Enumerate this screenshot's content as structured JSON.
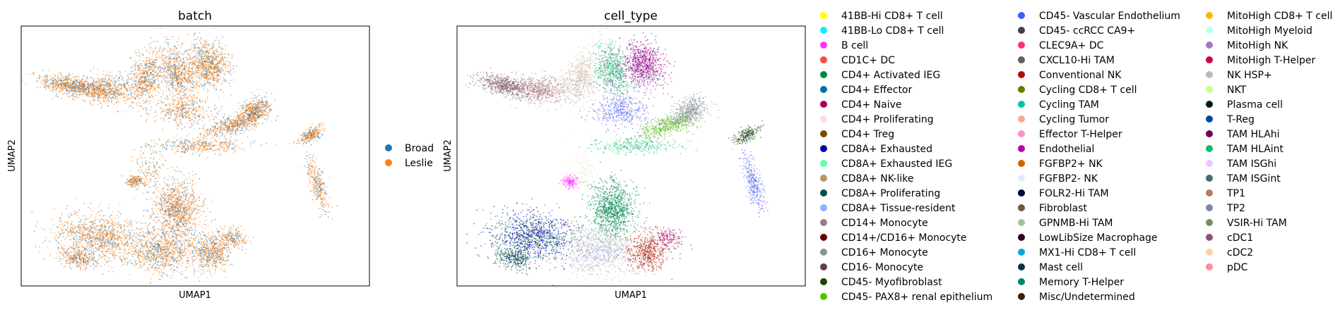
{
  "chart_data": [
    {
      "type": "scatter",
      "title": "batch",
      "xlabel": "UMAP1",
      "ylabel": "UMAP2",
      "grid": false,
      "legend_position": "right",
      "series": [
        {
          "name": "Broad",
          "color": "#1f77b4"
        },
        {
          "name": "Leslie",
          "color": "#ff7f0e"
        }
      ]
    },
    {
      "type": "scatter",
      "title": "cell_type",
      "xlabel": "UMAP1",
      "ylabel": "UMAP2",
      "grid": false,
      "legend_position": "right",
      "series": [
        {
          "name": "41BB-Hi CD8+ T cell",
          "color": "#ffff00"
        },
        {
          "name": "41BB-Lo CD8+ T cell",
          "color": "#1ce6ff"
        },
        {
          "name": "B cell",
          "color": "#ff34ff"
        },
        {
          "name": "CD1C+ DC",
          "color": "#ff4a46"
        },
        {
          "name": "CD4+ Activated IEG",
          "color": "#008941"
        },
        {
          "name": "CD4+ Effector",
          "color": "#006fa6"
        },
        {
          "name": "CD4+ Naive",
          "color": "#a30059"
        },
        {
          "name": "CD4+ Proliferating",
          "color": "#ffdbe5"
        },
        {
          "name": "CD4+ Treg",
          "color": "#7a4900"
        },
        {
          "name": "CD8A+ Exhausted",
          "color": "#0000a6"
        },
        {
          "name": "CD8A+ Exhausted IEG",
          "color": "#63ffac"
        },
        {
          "name": "CD8A+ NK-like",
          "color": "#b79762"
        },
        {
          "name": "CD8A+ Proliferating",
          "color": "#004d43"
        },
        {
          "name": "CD8A+ Tissue-resident",
          "color": "#8fb0ff"
        },
        {
          "name": "CD14+ Monocyte",
          "color": "#997d87"
        },
        {
          "name": "CD14+/CD16+ Monocyte",
          "color": "#5a0007"
        },
        {
          "name": "CD16+ Monocyte",
          "color": "#809693"
        },
        {
          "name": "CD16- Monocyte",
          "color": "#6a3a4c"
        },
        {
          "name": "CD45- Myofibroblast",
          "color": "#1b4400"
        },
        {
          "name": "CD45- PAX8+ renal epithelium",
          "color": "#4fc601"
        },
        {
          "name": "CD45- Vascular Endothelium",
          "color": "#3b5dff"
        },
        {
          "name": "CD45- ccRCC CA9+",
          "color": "#4a3b53"
        },
        {
          "name": "CLEC9A+ DC",
          "color": "#ff2f80"
        },
        {
          "name": "CXCL10-Hi TAM",
          "color": "#61615a"
        },
        {
          "name": "Conventional NK",
          "color": "#ba0900"
        },
        {
          "name": "Cycling CD8+ T cell",
          "color": "#6b7900"
        },
        {
          "name": "Cycling TAM",
          "color": "#00c2a0"
        },
        {
          "name": "Cycling Tumor",
          "color": "#ffaa92"
        },
        {
          "name": "Effector T-Helper",
          "color": "#ff90c9"
        },
        {
          "name": "Endothelial",
          "color": "#b903aa"
        },
        {
          "name": "FGFBP2+ NK",
          "color": "#d16100"
        },
        {
          "name": "FGFBP2- NK",
          "color": "#ddefff"
        },
        {
          "name": "FOLR2-Hi TAM",
          "color": "#000035"
        },
        {
          "name": "Fibroblast",
          "color": "#7b4f4b"
        },
        {
          "name": "GPNMB-Hi TAM",
          "color": "#a1c299"
        },
        {
          "name": "LowLibSize Macrophage",
          "color": "#300018"
        },
        {
          "name": "MX1-Hi CD8+ T cell",
          "color": "#0aa6d8"
        },
        {
          "name": "Mast cell",
          "color": "#013349"
        },
        {
          "name": "Memory T-Helper",
          "color": "#00846f"
        },
        {
          "name": "Misc/Undetermined",
          "color": "#372101"
        },
        {
          "name": "MitoHigh CD8+ T cell",
          "color": "#ffb500"
        },
        {
          "name": "MitoHigh Myeloid",
          "color": "#c2ffed"
        },
        {
          "name": "MitoHigh NK",
          "color": "#a079bf"
        },
        {
          "name": "MitoHigh T-Helper",
          "color": "#cc0744"
        },
        {
          "name": "NK HSP+",
          "color": "#c0b9b2"
        },
        {
          "name": "NKT",
          "color": "#c2ff99"
        },
        {
          "name": "Plasma cell",
          "color": "#001e09"
        },
        {
          "name": "T-Reg",
          "color": "#00489c"
        },
        {
          "name": "TAM HLAhi",
          "color": "#6f0062"
        },
        {
          "name": "TAM HLAint",
          "color": "#0cbd66"
        },
        {
          "name": "TAM ISGhi",
          "color": "#eec3ff"
        },
        {
          "name": "TAM ISGint",
          "color": "#456d75"
        },
        {
          "name": "TP1",
          "color": "#b77b68"
        },
        {
          "name": "TP2",
          "color": "#7a87a1"
        },
        {
          "name": "VSIR-Hi TAM",
          "color": "#788d66"
        },
        {
          "name": "cDC1",
          "color": "#885578"
        },
        {
          "name": "cDC2",
          "color": "#fad09f"
        },
        {
          "name": "pDC",
          "color": "#ff8a9a"
        }
      ]
    }
  ]
}
